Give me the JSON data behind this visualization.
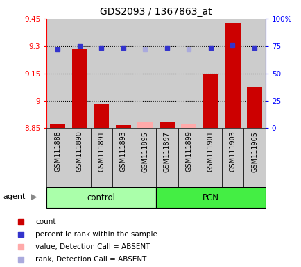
{
  "title": "GDS2093 / 1367863_at",
  "samples": [
    "GSM111888",
    "GSM111890",
    "GSM111891",
    "GSM111893",
    "GSM111895",
    "GSM111897",
    "GSM111899",
    "GSM111901",
    "GSM111903",
    "GSM111905"
  ],
  "groups": [
    "control",
    "control",
    "control",
    "control",
    "control",
    "PCN",
    "PCN",
    "PCN",
    "PCN",
    "PCN"
  ],
  "bar_values": [
    8.873,
    9.285,
    8.985,
    8.868,
    8.885,
    8.885,
    8.875,
    9.145,
    9.425,
    9.075
  ],
  "bar_colors": [
    "#cc0000",
    "#cc0000",
    "#cc0000",
    "#cc0000",
    "#ffaaaa",
    "#cc0000",
    "#ffaaaa",
    "#cc0000",
    "#cc0000",
    "#cc0000"
  ],
  "rank_values": [
    72,
    75,
    73,
    73,
    72,
    73,
    72,
    73,
    76,
    73
  ],
  "rank_colors": [
    "#3333cc",
    "#3333cc",
    "#3333cc",
    "#3333cc",
    "#aaaadd",
    "#3333cc",
    "#aaaadd",
    "#3333cc",
    "#3333cc",
    "#3333cc"
  ],
  "ylim_left": [
    8.85,
    9.45
  ],
  "ylim_right": [
    0,
    100
  ],
  "yticks_left": [
    8.85,
    9.0,
    9.15,
    9.3,
    9.45
  ],
  "ytick_labels_left": [
    "8.85",
    "9",
    "9.15",
    "9.3",
    "9.45"
  ],
  "yticks_right": [
    0,
    25,
    50,
    75,
    100
  ],
  "ytick_labels_right": [
    "0",
    "25",
    "50",
    "75",
    "100%"
  ],
  "hlines": [
    9.0,
    9.15,
    9.3
  ],
  "control_color_light": "#ccffcc",
  "control_color": "#aaffaa",
  "pcn_color": "#44ee44",
  "col_bg_color": "#cccccc",
  "bar_width": 0.7,
  "figsize": [
    4.35,
    3.84
  ],
  "dpi": 100,
  "legend_items": [
    {
      "color": "#cc0000",
      "label": "count"
    },
    {
      "color": "#3333cc",
      "label": "percentile rank within the sample"
    },
    {
      "color": "#ffaaaa",
      "label": "value, Detection Call = ABSENT"
    },
    {
      "color": "#aaaadd",
      "label": "rank, Detection Call = ABSENT"
    }
  ]
}
